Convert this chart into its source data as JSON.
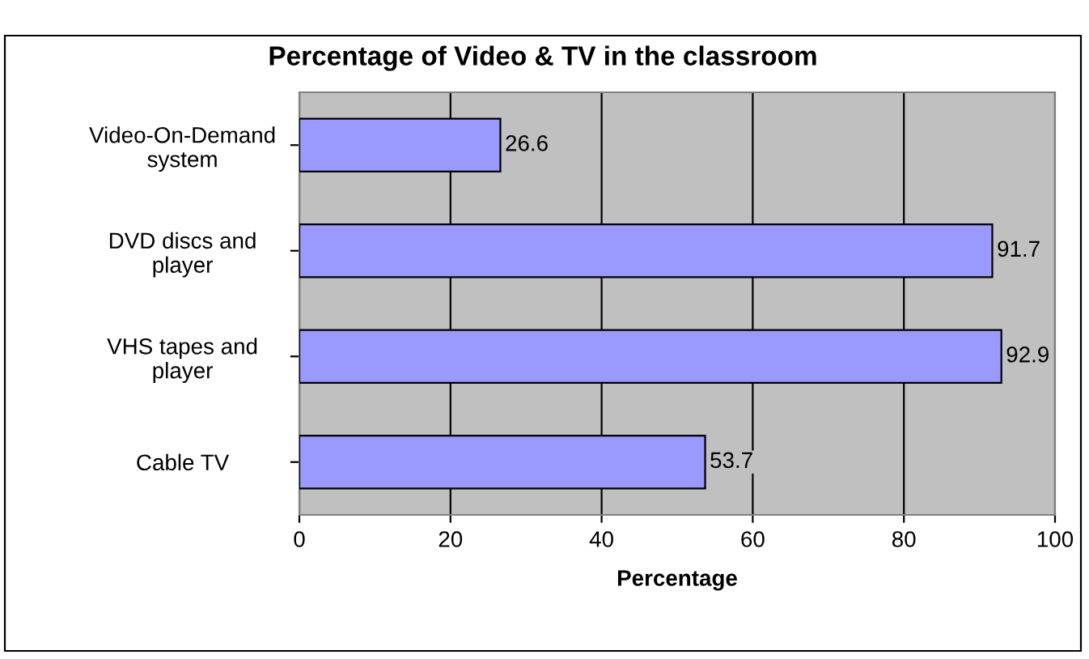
{
  "chart_data": {
    "type": "bar",
    "orientation": "horizontal",
    "title": "Percentage of Video & TV in the classroom",
    "xlabel": "Percentage",
    "categories": [
      "Video-On-Demand\nsystem",
      "DVD discs and\nplayer",
      "VHS tapes and\nplayer",
      "Cable TV"
    ],
    "values": [
      26.6,
      91.7,
      92.9,
      53.7
    ],
    "color": "#9999ff",
    "xlim": [
      0,
      100
    ],
    "xticks": [
      0,
      20,
      40,
      60,
      80,
      100
    ],
    "grid": "x",
    "data_labels": true,
    "legend": false
  }
}
